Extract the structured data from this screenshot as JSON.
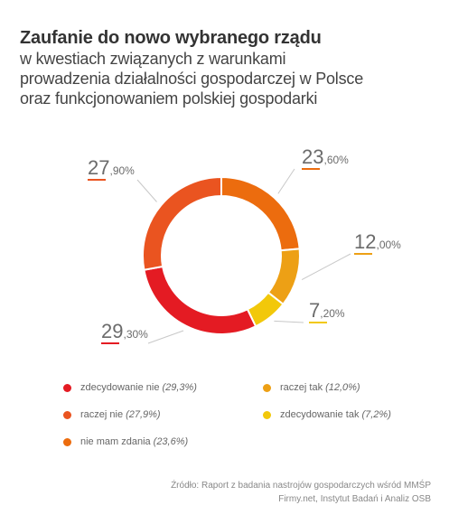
{
  "header": {
    "title": "Zaufanie do nowo wybranego rządu",
    "subtitle_lines": [
      "w kwestiach związanych z warunkami",
      "prowadzenia działalności gospodarczej w Polsce",
      "oraz funkcjonowaniem polskiej gospodarki"
    ]
  },
  "chart_data": {
    "type": "pie",
    "variant": "donut",
    "slices": [
      {
        "label": "nie mam zdania",
        "value": 23.6,
        "big": "23",
        "small": ",60%",
        "legend_value": "(23,6%)",
        "color": "#ec6c0e"
      },
      {
        "label": "raczej tak",
        "value": 12.0,
        "big": "12",
        "small": ",00%",
        "legend_value": "(12,0%)",
        "color": "#eda015"
      },
      {
        "label": "zdecydowanie tak",
        "value": 7.2,
        "big": "7",
        "small": ",20%",
        "legend_value": "(7,2%)",
        "color": "#f2c80a"
      },
      {
        "label": "zdecydowanie nie",
        "value": 29.3,
        "big": "29",
        "small": ",30%",
        "legend_value": "(29,3%)",
        "color": "#e41b23"
      },
      {
        "label": "raczej nie",
        "value": 27.9,
        "big": "27",
        "small": ",90%",
        "legend_value": "(27,9%)",
        "color": "#ea5420"
      }
    ]
  },
  "legend": [
    {
      "label": "zdecydowanie nie",
      "value": "(29,3%)",
      "color": "#e41b23"
    },
    {
      "label": "raczej tak",
      "value": "(12,0%)",
      "color": "#eda015"
    },
    {
      "label": "raczej nie",
      "value": "(27,9%)",
      "color": "#ea5420"
    },
    {
      "label": "zdecydowanie tak",
      "value": "(7,2%)",
      "color": "#f2c80a"
    },
    {
      "label": "nie mam zdania",
      "value": "(23,6%)",
      "color": "#ec6c0e"
    }
  ],
  "source": {
    "line1": "Źródło: Raport z badania nastrojów gospodarczych wśród MMŚP",
    "line2": "Firmy.net, Instytut Badań i Analiz OSB"
  }
}
